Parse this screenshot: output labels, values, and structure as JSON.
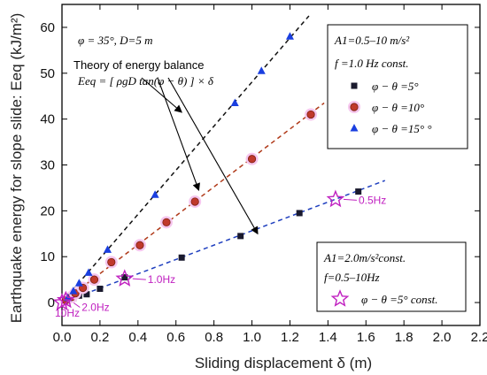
{
  "chart_data": {
    "type": "scatter",
    "xlabel": "Sliding displacement  δ (m)",
    "ylabel": "Earthquake energy for slope slide: Eeq (kJ/m²)",
    "xlim": [
      0,
      2.2
    ],
    "ylim": [
      -5,
      65
    ],
    "xticks": [
      "0.0",
      "0.2",
      "0.4",
      "0.6",
      "0.8",
      "1.0",
      "1.2",
      "1.4",
      "1.6",
      "1.8",
      "2.0",
      "2.2"
    ],
    "yticks": [
      "0",
      "10",
      "20",
      "30",
      "40",
      "50",
      "60"
    ],
    "param_text": "φ = 35°, D=5 m",
    "theory": {
      "title": "Theory of energy balance",
      "formula": "Eeq = [ ρgD tan(φ − θ) ] × δ"
    },
    "legend_top": {
      "line1": "A1=0.5–10 m/s²",
      "line2": "f =1.0 Hz const.",
      "entries": [
        "φ − θ =5°",
        "φ − θ =10°",
        "φ − θ =15° °"
      ]
    },
    "legend_bottom": {
      "line1": "A1=2.0m/s²const.",
      "line2": "f=0.5–10Hz",
      "entry": "φ − θ =5° const."
    },
    "series": [
      {
        "name": "φ − θ =5°",
        "marker": "square",
        "color": "#1a1a2e",
        "x": [
          0.02,
          0.04,
          0.06,
          0.09,
          0.13,
          0.2,
          0.33,
          0.63,
          0.94,
          1.25,
          1.56
        ],
        "y": [
          0.3,
          0.6,
          1.0,
          1.5,
          1.8,
          3.0,
          5.5,
          9.8,
          14.5,
          19.5,
          24.2
        ],
        "fit": {
          "x0": 0,
          "y0": 0,
          "x1": 1.7,
          "y1": 26.6,
          "color": "#1f3fbf"
        }
      },
      {
        "name": "φ − θ =10°",
        "marker": "circle",
        "color": "#c0392b",
        "x": [
          0.02,
          0.05,
          0.07,
          0.11,
          0.17,
          0.26,
          0.41,
          0.55,
          0.7,
          1.0,
          1.31
        ],
        "y": [
          0.5,
          1.2,
          2.0,
          3.2,
          5.0,
          8.8,
          12.5,
          17.5,
          22.0,
          31.3,
          41.0
        ],
        "fit": {
          "x0": 0,
          "y0": 0,
          "x1": 1.38,
          "y1": 43.5,
          "color": "#b03a1a"
        }
      },
      {
        "name": "φ − θ =15° °",
        "marker": "triangle",
        "color": "#1a3fe0",
        "x": [
          0.03,
          0.06,
          0.09,
          0.14,
          0.24,
          0.49,
          0.91,
          1.05,
          1.2
        ],
        "y": [
          1.0,
          2.5,
          4.2,
          6.5,
          11.5,
          23.5,
          43.5,
          50.5,
          58.0
        ],
        "fit": {
          "x0": 0,
          "y0": 0,
          "x1": 1.3,
          "y1": 62.5,
          "color": "#111111"
        }
      },
      {
        "name": "φ − θ =5° const.",
        "marker": "star",
        "color": "#c020c0",
        "x": [
          0.0,
          0.02,
          0.33,
          1.44
        ],
        "y": [
          0.0,
          0.5,
          5.2,
          22.5
        ]
      }
    ],
    "annotations": [
      {
        "text": "0.5Hz",
        "x": 1.44,
        "y": 22.5
      },
      {
        "text": "1.0Hz",
        "x": 0.33,
        "y": 5.2
      },
      {
        "text": "2.0Hz",
        "x": 0.02,
        "y": 0.5
      },
      {
        "text": "10Hz",
        "x": 0.0,
        "y": 0.0
      }
    ]
  }
}
